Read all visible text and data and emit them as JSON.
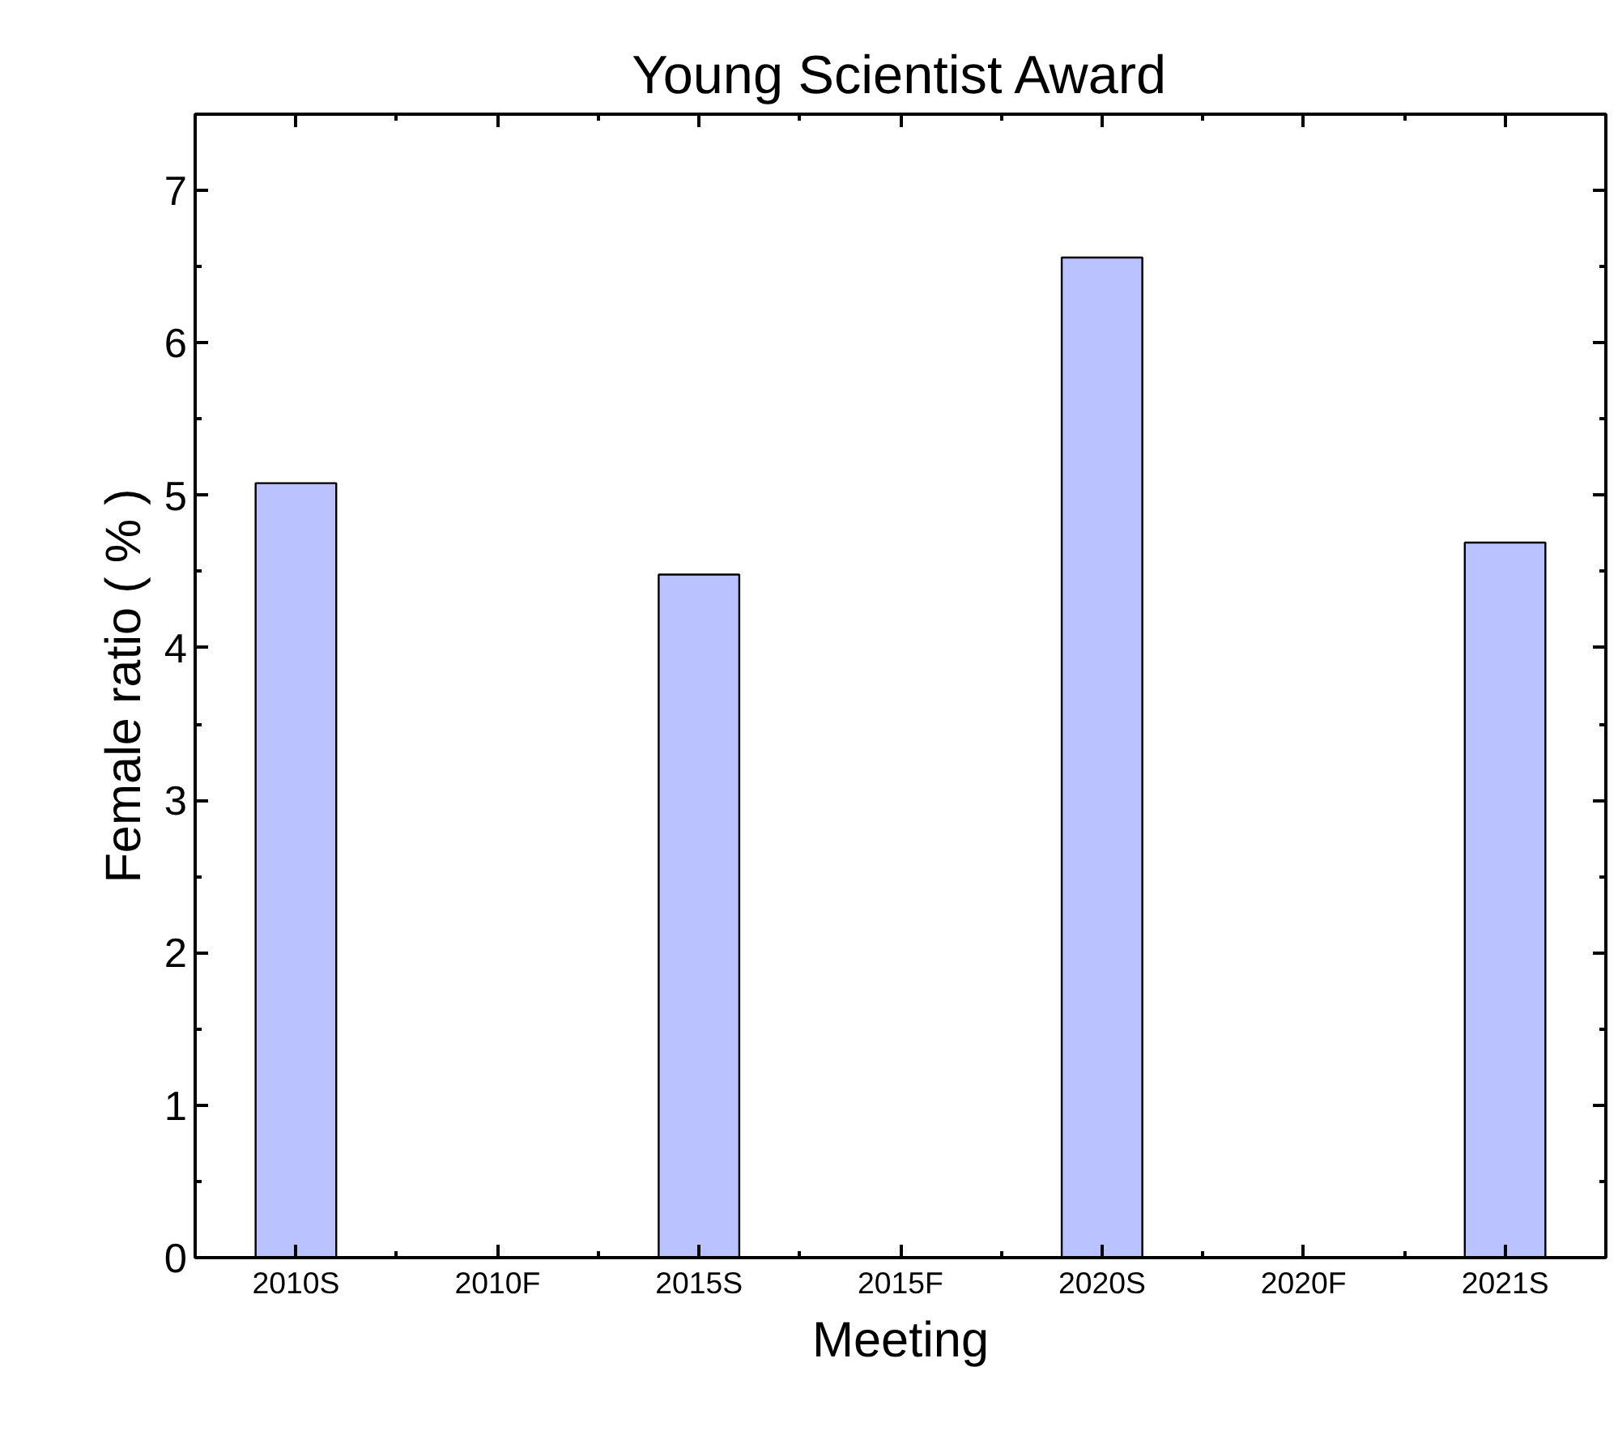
{
  "chart_data": {
    "type": "bar",
    "title": "Young Scientist Award",
    "xlabel": "Meeting",
    "ylabel": "Female ratio ( % )",
    "categories": [
      "2010S",
      "2010F",
      "2015S",
      "2015F",
      "2020S",
      "2020F",
      "2021S"
    ],
    "values": [
      5.08,
      null,
      4.48,
      null,
      6.56,
      null,
      4.69
    ],
    "color": "#bac2ff",
    "ylim": [
      0,
      7.5
    ],
    "yticks": [
      0,
      1,
      2,
      3,
      4,
      5,
      6,
      7
    ],
    "grid": false
  }
}
